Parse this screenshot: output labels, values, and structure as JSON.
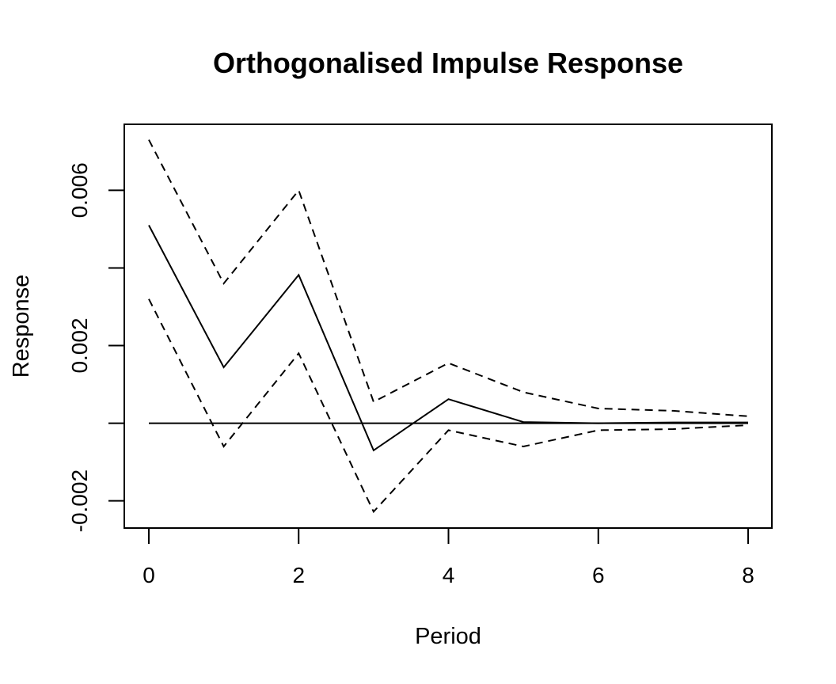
{
  "chart_data": {
    "type": "line",
    "title": "Orthogonalised Impulse Response",
    "xlabel": "Period",
    "ylabel": "Response",
    "xlim": [
      0,
      8
    ],
    "ylim": [
      -0.0027,
      0.0077
    ],
    "xticks": [
      0,
      2,
      4,
      6,
      8
    ],
    "yticks": [
      -0.002,
      0,
      0.002,
      0.004,
      0.006
    ],
    "ytick_labels": [
      "-0.002",
      "",
      "0.002",
      "",
      "0.006"
    ],
    "grid": false,
    "x": [
      0,
      1,
      2,
      3,
      4,
      5,
      6,
      7,
      8
    ],
    "series": [
      {
        "role": "response",
        "line": "solid",
        "color": "#000000",
        "values": [
          0.0051,
          0.00144,
          0.00382,
          -0.0007,
          0.00062,
          3e-05,
          0.0,
          2e-05,
          2e-05
        ]
      },
      {
        "role": "upper",
        "line": "dashed",
        "color": "#000000",
        "values": [
          0.0073,
          0.0036,
          0.006,
          0.00055,
          0.00155,
          0.0008,
          0.00038,
          0.00032,
          0.00018
        ]
      },
      {
        "role": "lower",
        "line": "dashed",
        "color": "#000000",
        "values": [
          0.0032,
          -0.0006,
          0.0018,
          -0.00228,
          -0.00018,
          -0.0006,
          -0.00018,
          -0.00015,
          -5e-05
        ]
      },
      {
        "role": "zero-line",
        "line": "solid",
        "color": "#000000",
        "values": [
          0,
          0,
          0,
          0,
          0,
          0,
          0,
          0,
          0
        ]
      }
    ]
  }
}
